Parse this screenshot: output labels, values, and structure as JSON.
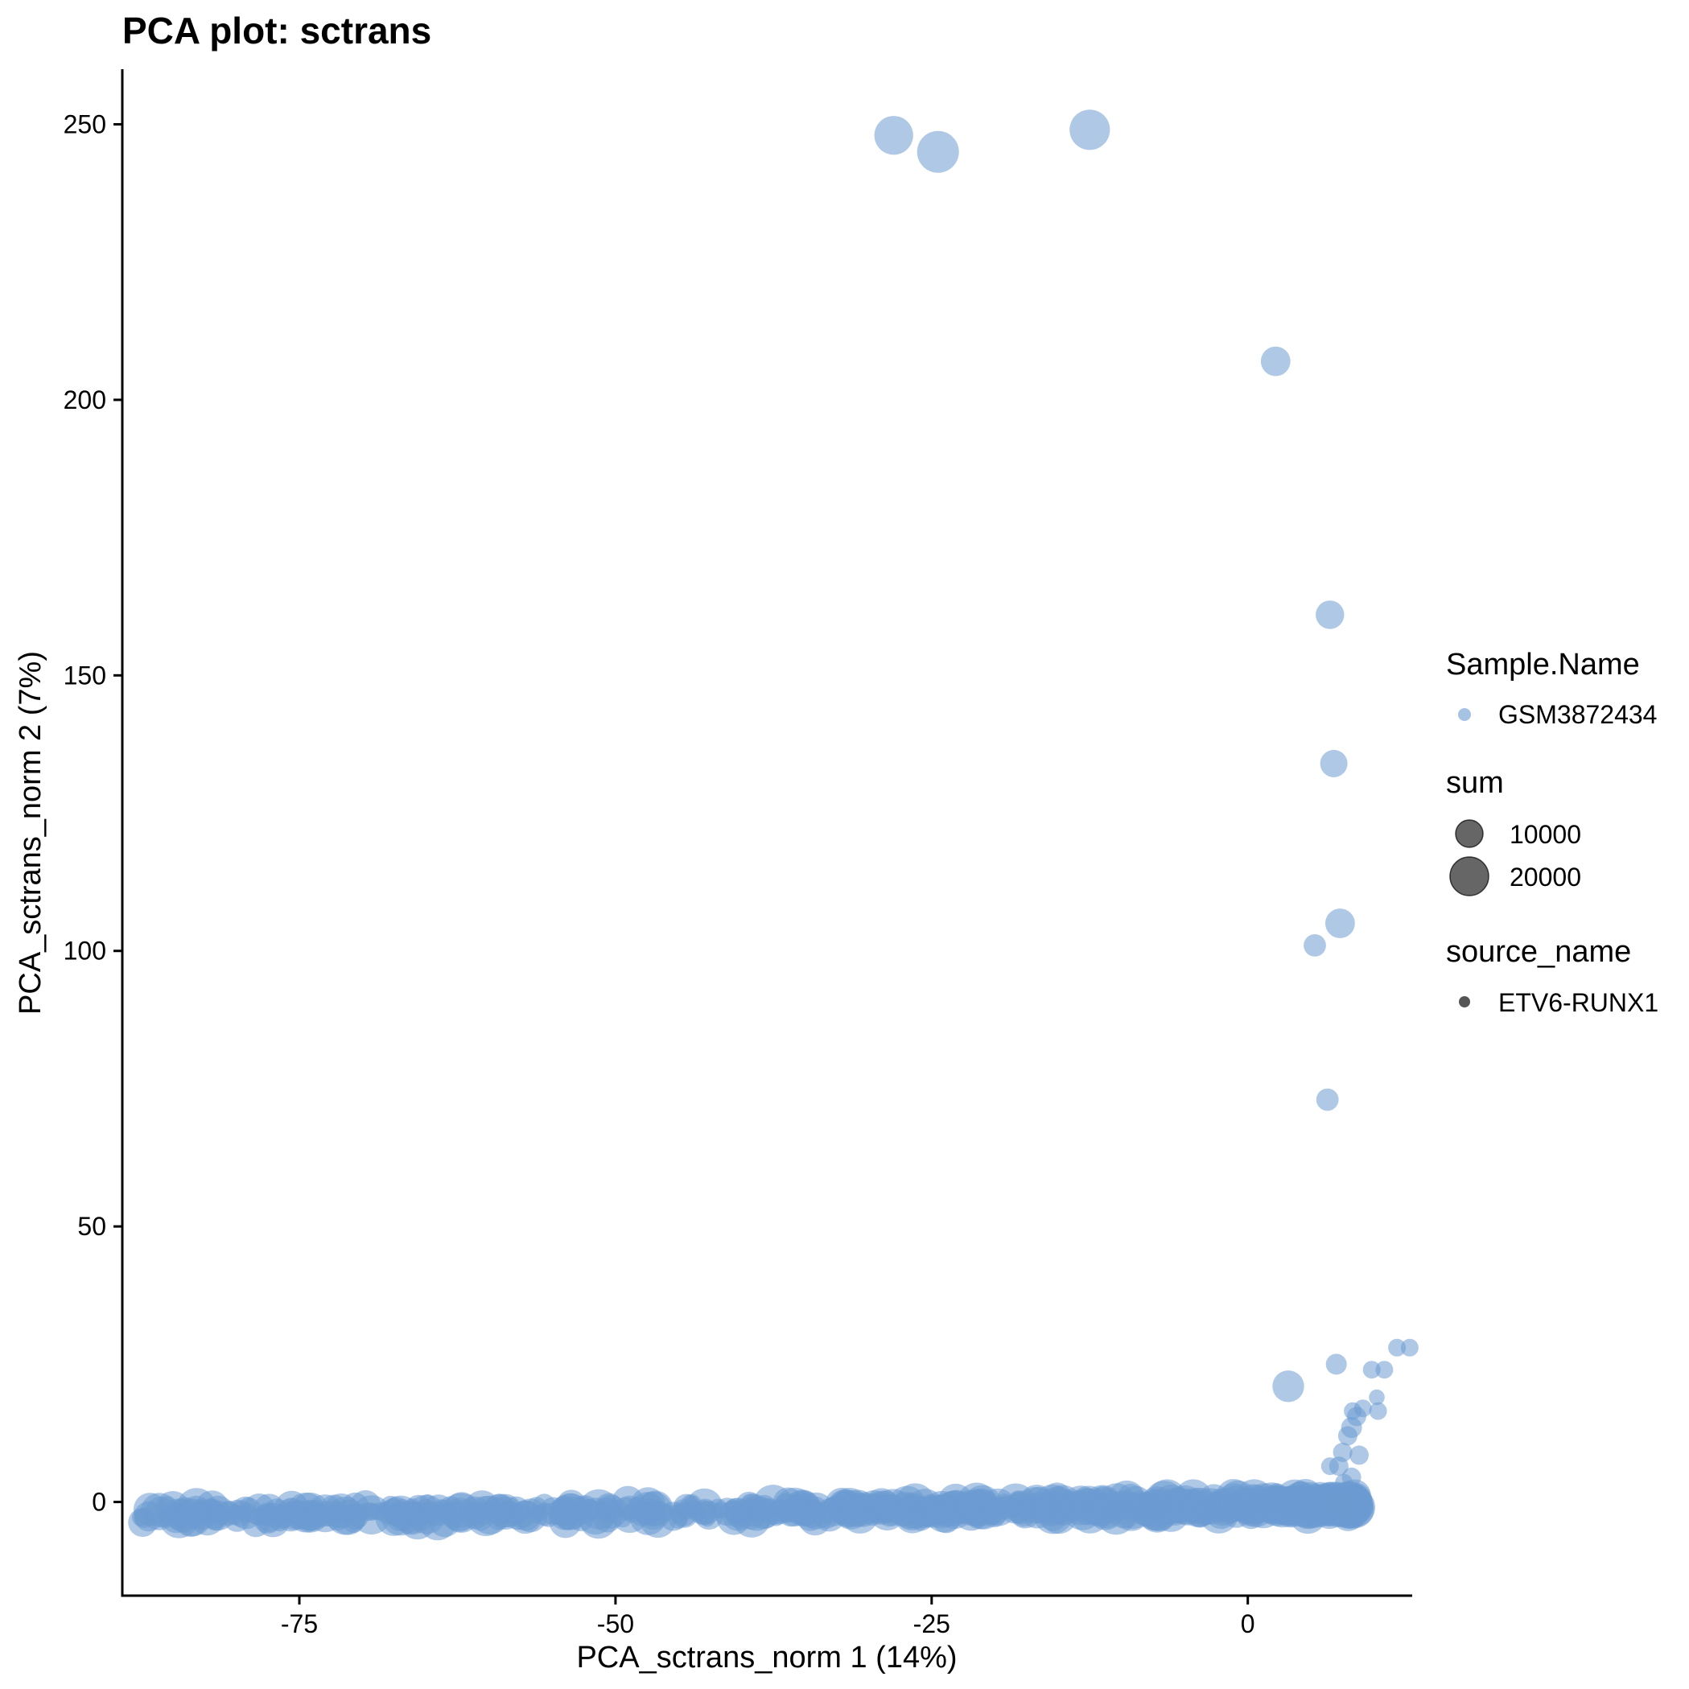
{
  "chart_data": {
    "type": "scatter",
    "title": "PCA plot: sctrans",
    "xlabel": "PCA_sctrans_norm 1 (14%)",
    "ylabel": "PCA_sctrans_norm 2 (7%)",
    "xlim": [
      -89,
      13
    ],
    "ylim": [
      -17,
      260
    ],
    "x_ticks": [
      -75,
      -50,
      -25,
      0
    ],
    "y_ticks": [
      0,
      50,
      100,
      150,
      200,
      250
    ],
    "grid": false,
    "point_color": "#6c9bd2",
    "point_alpha": 0.55,
    "legend_position": "right",
    "legend": {
      "color": {
        "title": "Sample.Name",
        "entries": [
          {
            "label": "GSM3872434",
            "color": "#6c9bd2"
          }
        ]
      },
      "size": {
        "title": "sum",
        "entries": [
          {
            "label": "10000",
            "value": 10000
          },
          {
            "label": "20000",
            "value": 20000
          }
        ]
      },
      "shape": {
        "title": "source_name",
        "entries": [
          {
            "label": "ETV6-RUNX1",
            "color": "#555555"
          }
        ]
      }
    },
    "outliers": [
      {
        "x": -28,
        "y": 248,
        "sum": 24000
      },
      {
        "x": -24.5,
        "y": 245,
        "sum": 28000
      },
      {
        "x": -12.5,
        "y": 249,
        "sum": 26000
      },
      {
        "x": 2.2,
        "y": 207,
        "sum": 14000
      },
      {
        "x": 6.5,
        "y": 161,
        "sum": 13000
      },
      {
        "x": 6.8,
        "y": 134,
        "sum": 12000
      },
      {
        "x": 7.3,
        "y": 105,
        "sum": 14000
      },
      {
        "x": 5.3,
        "y": 101,
        "sum": 8000
      },
      {
        "x": 6.3,
        "y": 73,
        "sum": 8000
      },
      {
        "x": 3.2,
        "y": 21,
        "sum": 16000
      },
      {
        "x": 7,
        "y": 25,
        "sum": 7000
      },
      {
        "x": 11.8,
        "y": 28,
        "sum": 5000
      },
      {
        "x": 12.8,
        "y": 28,
        "sum": 5000
      },
      {
        "x": 10.8,
        "y": 24,
        "sum": 5000
      },
      {
        "x": 9.8,
        "y": 24,
        "sum": 5000
      },
      {
        "x": 10.2,
        "y": 19,
        "sum": 4000
      },
      {
        "x": 10.3,
        "y": 16.5,
        "sum": 5000
      },
      {
        "x": 8.3,
        "y": 16.5,
        "sum": 5000
      },
      {
        "x": 9.1,
        "y": 17,
        "sum": 5000
      },
      {
        "x": 8.6,
        "y": 15.5,
        "sum": 6000
      },
      {
        "x": 8.2,
        "y": 13.5,
        "sum": 7000
      },
      {
        "x": 7.9,
        "y": 12,
        "sum": 6000
      },
      {
        "x": 7.5,
        "y": 9,
        "sum": 6000
      },
      {
        "x": 8.8,
        "y": 8.5,
        "sum": 6000
      },
      {
        "x": 7.2,
        "y": 6.5,
        "sum": 6000
      },
      {
        "x": 6.5,
        "y": 6.5,
        "sum": 5000
      },
      {
        "x": 8.2,
        "y": 4.5,
        "sum": 6000
      },
      {
        "x": 7.6,
        "y": 3.5,
        "sum": 5000
      }
    ],
    "band": {
      "y_center": -1.5,
      "y_spread": 2.2,
      "x_range": [
        -88,
        8.5
      ],
      "sum_range": [
        4000,
        26000
      ]
    }
  }
}
